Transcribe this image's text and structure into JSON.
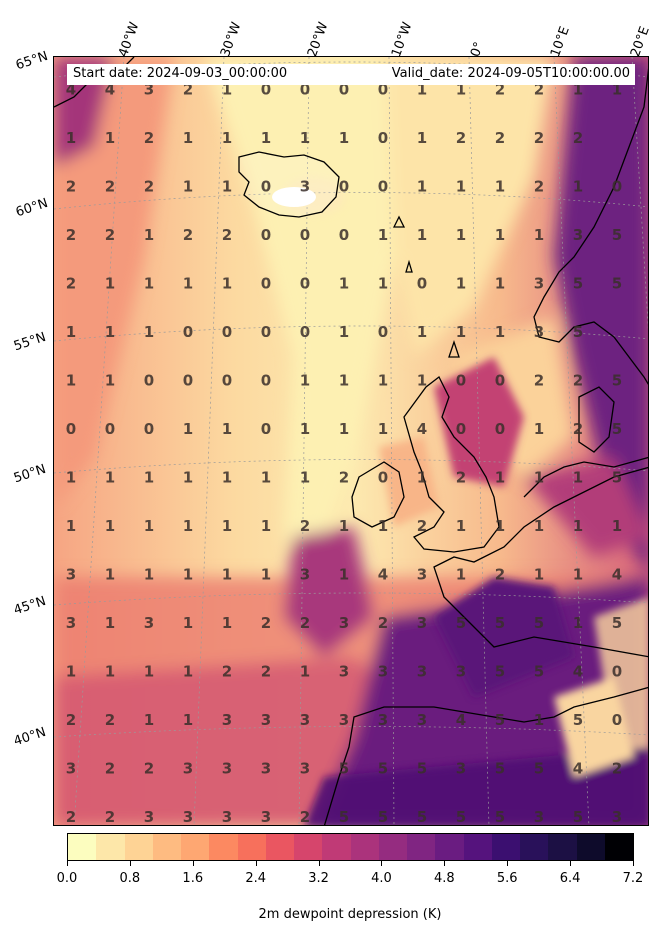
{
  "start_date": "Start date: 2024-09-03_00:00:00",
  "valid_date": "Valid_date: 2024-09-05T10:00:00.00",
  "lat_labels": [
    "65°N",
    "60°N",
    "55°N",
    "50°N",
    "45°N",
    "40°N"
  ],
  "lon_labels": [
    "40°W",
    "30°W",
    "20°W",
    "10°W",
    "0°",
    "10°E",
    "20°E"
  ],
  "grid_values": [
    [
      "4",
      "4",
      "3",
      "2",
      "1",
      "0",
      "0",
      "0",
      "0",
      "1",
      "1",
      "2",
      "2",
      "1",
      "1"
    ],
    [
      "1",
      "1",
      "2",
      "1",
      "1",
      "1",
      "1",
      "1",
      "0",
      "1",
      "2",
      "2",
      "2",
      "2",
      ""
    ],
    [
      "2",
      "2",
      "2",
      "1",
      "1",
      "0",
      "3",
      "0",
      "0",
      "1",
      "1",
      "1",
      "2",
      "1",
      "0"
    ],
    [
      "2",
      "2",
      "1",
      "2",
      "2",
      "0",
      "0",
      "0",
      "1",
      "1",
      "1",
      "1",
      "1",
      "3",
      "5"
    ],
    [
      "2",
      "1",
      "1",
      "1",
      "1",
      "0",
      "0",
      "1",
      "1",
      "0",
      "1",
      "1",
      "3",
      "5",
      "5"
    ],
    [
      "1",
      "1",
      "1",
      "0",
      "0",
      "0",
      "0",
      "1",
      "0",
      "1",
      "1",
      "1",
      "3",
      "5",
      ""
    ],
    [
      "1",
      "1",
      "0",
      "0",
      "0",
      "0",
      "1",
      "1",
      "1",
      "1",
      "0",
      "0",
      "2",
      "2",
      "5"
    ],
    [
      "0",
      "0",
      "0",
      "1",
      "1",
      "0",
      "1",
      "1",
      "1",
      "4",
      "0",
      "0",
      "1",
      "2",
      "5"
    ],
    [
      "1",
      "1",
      "1",
      "1",
      "1",
      "1",
      "1",
      "2",
      "0",
      "1",
      "2",
      "1",
      "1",
      "1",
      "5"
    ],
    [
      "1",
      "1",
      "1",
      "1",
      "1",
      "1",
      "2",
      "1",
      "1",
      "2",
      "1",
      "1",
      "1",
      "1",
      "1"
    ],
    [
      "3",
      "1",
      "1",
      "1",
      "1",
      "1",
      "3",
      "1",
      "4",
      "3",
      "1",
      "2",
      "1",
      "1",
      "4"
    ],
    [
      "3",
      "1",
      "3",
      "1",
      "1",
      "2",
      "2",
      "3",
      "2",
      "3",
      "5",
      "5",
      "5",
      "1",
      "5"
    ],
    [
      "1",
      "1",
      "1",
      "1",
      "2",
      "2",
      "1",
      "3",
      "3",
      "3",
      "3",
      "5",
      "5",
      "4",
      "0"
    ],
    [
      "2",
      "2",
      "1",
      "1",
      "3",
      "3",
      "3",
      "3",
      "3",
      "3",
      "4",
      "5",
      "1",
      "5",
      "0"
    ],
    [
      "3",
      "2",
      "2",
      "3",
      "3",
      "3",
      "3",
      "5",
      "5",
      "5",
      "3",
      "5",
      "5",
      "4",
      "2"
    ],
    [
      "2",
      "2",
      "3",
      "3",
      "3",
      "3",
      "2",
      "5",
      "5",
      "5",
      "5",
      "5",
      "3",
      "5",
      "3"
    ]
  ],
  "colorbar": {
    "label": "2m dewpoint depression (K)",
    "min": 0.0,
    "max": 7.2,
    "ticks": [
      "0.0",
      "0.8",
      "1.6",
      "2.4",
      "3.2",
      "4.0",
      "4.8",
      "5.6",
      "6.4",
      "7.2"
    ],
    "colors": [
      "#fcfdbf",
      "#fde7a9",
      "#fed395",
      "#febb81",
      "#fea772",
      "#fc8961",
      "#f7705c",
      "#ea5661",
      "#d6456c",
      "#c03a76",
      "#ab337c",
      "#952c80",
      "#802582",
      "#6a1c81",
      "#55137d",
      "#3b0f70",
      "#29115a",
      "#1c1044",
      "#0e0b2b",
      "#000004"
    ]
  },
  "field_colors": {
    "moist": "#fdf0b2",
    "mid": "#f9a07a",
    "dry": "#a33378",
    "very_dry": "#5c1a79",
    "coast": "#000000"
  }
}
